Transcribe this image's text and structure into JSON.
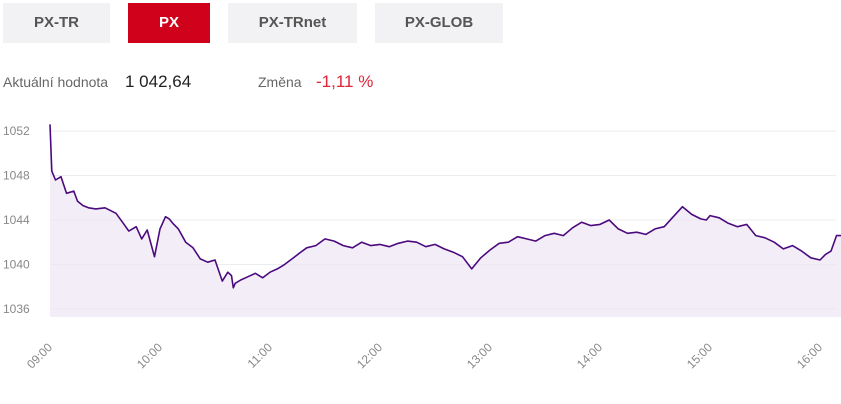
{
  "tabs": [
    {
      "label": "PX-TR",
      "active": false
    },
    {
      "label": "PX",
      "active": true
    },
    {
      "label": "PX-TRnet",
      "active": false
    },
    {
      "label": "PX-GLOB",
      "active": false
    }
  ],
  "info": {
    "value_label": "Aktuální hodnota",
    "value": "1 042,64",
    "change_label": "Změna",
    "change": "-1,11 %"
  },
  "colors": {
    "accent": "#d0021b",
    "line": "#4b0a7e",
    "area": "#ece6f3",
    "negative": "#e0243a"
  },
  "chart_data": {
    "type": "area",
    "x_unit": "time (HH:MM)",
    "ylim": [
      1035,
      1053
    ],
    "yticks": [
      1036,
      1040,
      1044,
      1048,
      1052
    ],
    "xticks": [
      "09:00",
      "10:00",
      "11:00",
      "12:00",
      "13:00",
      "14:00",
      "15:00",
      "16:00"
    ],
    "grid": true,
    "series": [
      {
        "x": [
          "09:00",
          "09:01",
          "09:03",
          "09:06",
          "09:09",
          "09:13",
          "09:15",
          "09:18",
          "09:21",
          "09:25",
          "09:30",
          "09:36",
          "09:40",
          "09:43",
          "09:47",
          "09:50",
          "09:53",
          "09:57",
          "10:00",
          "10:03",
          "10:05",
          "10:07",
          "10:10",
          "10:14",
          "10:18",
          "10:22",
          "10:26",
          "10:30",
          "10:34",
          "10:37",
          "10:39",
          "10:40",
          "10:41",
          "10:44",
          "10:48",
          "10:52",
          "10:56",
          "11:00",
          "11:04",
          "11:08",
          "11:12",
          "11:16",
          "11:20",
          "11:25",
          "11:30",
          "11:35",
          "11:40",
          "11:45",
          "11:50",
          "11:55",
          "12:00",
          "12:05",
          "12:10",
          "12:15",
          "12:20",
          "12:25",
          "12:30",
          "12:35",
          "12:40",
          "12:45",
          "12:50",
          "12:55",
          "13:00",
          "13:05",
          "13:10",
          "13:15",
          "13:20",
          "13:25",
          "13:30",
          "13:35",
          "13:40",
          "13:45",
          "13:50",
          "13:55",
          "14:00",
          "14:05",
          "14:10",
          "14:15",
          "14:20",
          "14:25",
          "14:30",
          "14:35",
          "14:40",
          "14:45",
          "14:50",
          "14:55",
          "14:58",
          "15:00",
          "15:05",
          "15:10",
          "15:15",
          "15:20",
          "15:25",
          "15:30",
          "15:35",
          "15:40",
          "15:45",
          "15:50",
          "15:55",
          "16:00",
          "16:03",
          "16:06",
          "16:09",
          "16:12",
          "16:15"
        ],
        "values": [
          1052.6,
          1048.4,
          1047.6,
          1047.9,
          1046.4,
          1046.6,
          1045.7,
          1045.3,
          1045.1,
          1045.0,
          1045.1,
          1044.6,
          1043.7,
          1043.0,
          1043.4,
          1042.3,
          1043.1,
          1040.7,
          1043.2,
          1044.3,
          1044.1,
          1043.7,
          1043.2,
          1042.0,
          1041.5,
          1040.5,
          1040.2,
          1040.4,
          1038.5,
          1039.3,
          1039.0,
          1037.9,
          1038.3,
          1038.6,
          1038.9,
          1039.2,
          1038.8,
          1039.3,
          1039.6,
          1040.0,
          1040.5,
          1041.0,
          1041.5,
          1041.7,
          1042.3,
          1042.1,
          1041.7,
          1041.5,
          1042.0,
          1041.7,
          1041.8,
          1041.6,
          1041.9,
          1042.1,
          1042.0,
          1041.6,
          1041.8,
          1041.4,
          1041.1,
          1040.7,
          1039.6,
          1040.6,
          1041.3,
          1041.9,
          1042.0,
          1042.5,
          1042.3,
          1042.1,
          1042.6,
          1042.8,
          1042.6,
          1043.3,
          1043.8,
          1043.5,
          1043.6,
          1044.0,
          1043.2,
          1042.8,
          1042.9,
          1042.7,
          1043.2,
          1043.4,
          1044.3,
          1045.2,
          1044.5,
          1044.1,
          1044.0,
          1044.4,
          1044.2,
          1043.7,
          1043.4,
          1043.6,
          1042.6,
          1042.4,
          1042.0,
          1041.4,
          1041.7,
          1041.2,
          1040.6,
          1040.4,
          1040.9,
          1041.2,
          1042.6,
          1042.6,
          1042.6
        ]
      }
    ]
  }
}
